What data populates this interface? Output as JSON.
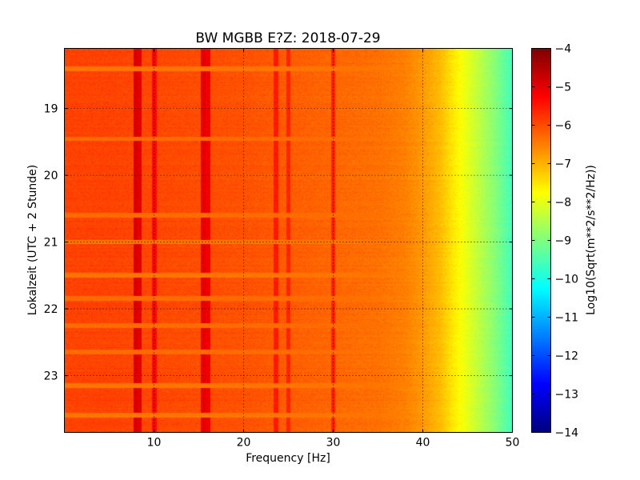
{
  "chart_data": {
    "type": "heatmap",
    "title": "BW MGBB E?Z: 2018-07-29",
    "xlabel": "Frequency [Hz]",
    "ylabel": "Lokalzeit (UTC + 2 Stunde)",
    "xlim": [
      0,
      50
    ],
    "ylim": [
      18.1,
      23.85
    ],
    "y_inverted": true,
    "grid": true,
    "x_ticks": [
      {
        "value": 10,
        "label": "10"
      },
      {
        "value": 20,
        "label": "20"
      },
      {
        "value": 30,
        "label": "30"
      },
      {
        "value": 40,
        "label": "40"
      },
      {
        "value": 50,
        "label": "50"
      }
    ],
    "y_ticks": [
      {
        "value": 19,
        "label": "19"
      },
      {
        "value": 20,
        "label": "20"
      },
      {
        "value": 21,
        "label": "21"
      },
      {
        "value": 22,
        "label": "22"
      },
      {
        "value": 23,
        "label": "23"
      }
    ],
    "colorbar": {
      "label": "Log10(Sqrt(m**2/s**2/Hz))",
      "min": -14,
      "max": -4,
      "colormap": "jet",
      "ticks": [
        {
          "value": -4,
          "label": "−4"
        },
        {
          "value": -5,
          "label": "−5"
        },
        {
          "value": -6,
          "label": "−6"
        },
        {
          "value": -7,
          "label": "−7"
        },
        {
          "value": -8,
          "label": "−8"
        },
        {
          "value": -9,
          "label": "−9"
        },
        {
          "value": -10,
          "label": "−10"
        },
        {
          "value": -11,
          "label": "−11"
        },
        {
          "value": -12,
          "label": "−12"
        },
        {
          "value": -13,
          "label": "−13"
        },
        {
          "value": -14,
          "label": "−14"
        }
      ]
    },
    "spectrum_profile": [
      {
        "f": 0,
        "v": -5.9
      },
      {
        "f": 5,
        "v": -5.9
      },
      {
        "f": 10,
        "v": -5.95
      },
      {
        "f": 15,
        "v": -6.0
      },
      {
        "f": 20,
        "v": -6.05
      },
      {
        "f": 25,
        "v": -6.15
      },
      {
        "f": 30,
        "v": -6.25
      },
      {
        "f": 35,
        "v": -6.35
      },
      {
        "f": 38,
        "v": -6.5
      },
      {
        "f": 40,
        "v": -6.75
      },
      {
        "f": 42,
        "v": -7.1
      },
      {
        "f": 44,
        "v": -7.7
      },
      {
        "f": 46,
        "v": -8.3
      },
      {
        "f": 48,
        "v": -8.9
      },
      {
        "f": 50,
        "v": -9.6
      }
    ],
    "spectral_lines": [
      {
        "f": 7.9,
        "v": -4.9
      },
      {
        "f": 8.3,
        "v": -5.0
      },
      {
        "f": 10.0,
        "v": -5.3
      },
      {
        "f": 15.5,
        "v": -5.0
      },
      {
        "f": 16.0,
        "v": -5.1
      },
      {
        "f": 23.6,
        "v": -5.5
      },
      {
        "f": 25.0,
        "v": -5.6
      },
      {
        "f": 30.0,
        "v": -5.6
      }
    ],
    "quiet_bands": [
      {
        "t": 18.4,
        "v": -6.4
      },
      {
        "t": 19.45,
        "v": -6.3
      },
      {
        "t": 20.6,
        "v": -6.3
      },
      {
        "t": 21.0,
        "v": -6.4
      },
      {
        "t": 21.5,
        "v": -6.4
      },
      {
        "t": 21.85,
        "v": -6.3
      },
      {
        "t": 22.25,
        "v": -6.3
      },
      {
        "t": 22.65,
        "v": -6.3
      },
      {
        "t": 23.15,
        "v": -6.4
      },
      {
        "t": 23.6,
        "v": -6.4
      }
    ]
  }
}
